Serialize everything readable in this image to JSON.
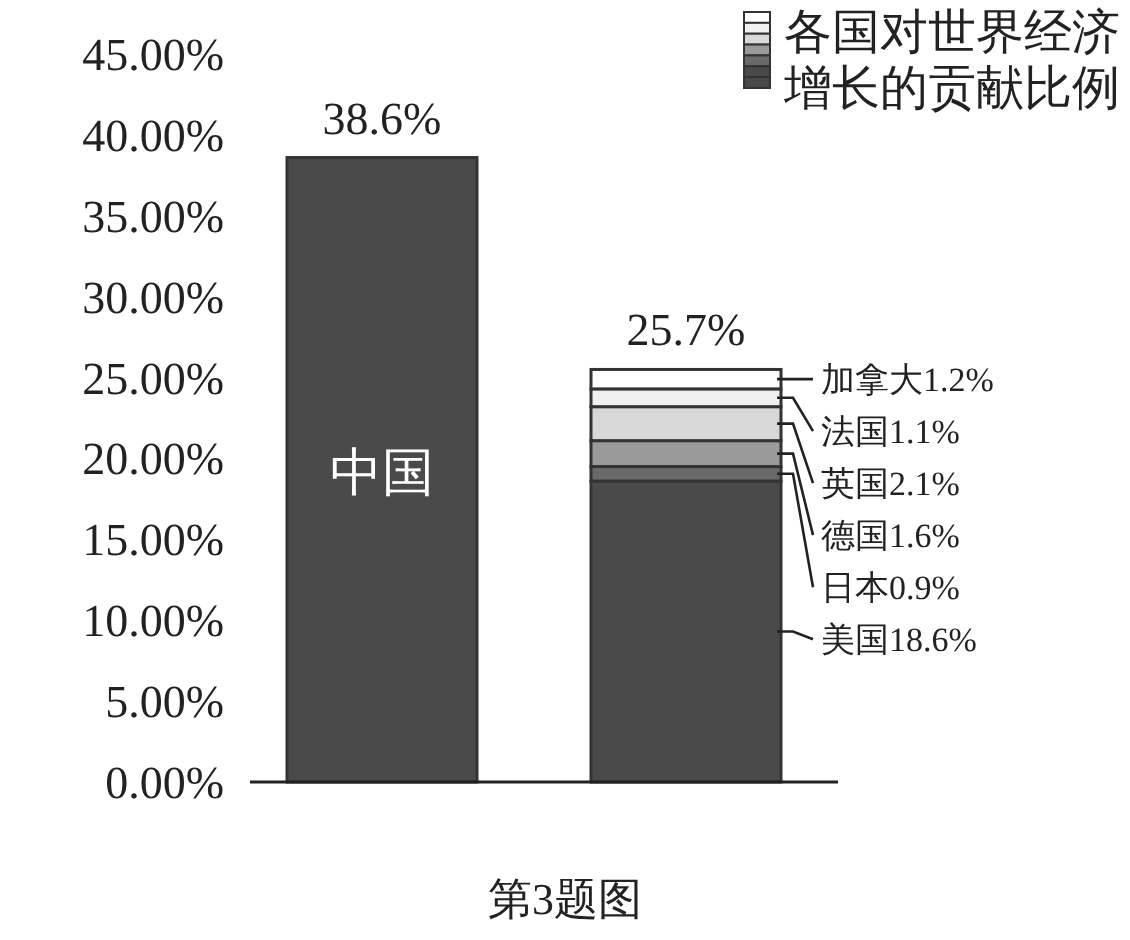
{
  "chart_data": {
    "type": "bar",
    "stacked": true,
    "title": "各国对世界经济增长的贡献比例",
    "categories": [
      null,
      null
    ],
    "series": [
      {
        "name": "中国",
        "color": "#4a4a4a",
        "values": [
          38.6,
          null
        ]
      },
      {
        "name": "美国",
        "color": "#4a4a4a",
        "values": [
          null,
          18.6
        ],
        "value_labels": [
          null,
          "18.6%"
        ]
      },
      {
        "name": "日本",
        "color": "#6a6a6a",
        "values": [
          null,
          0.9
        ],
        "value_labels": [
          null,
          "0.9%"
        ]
      },
      {
        "name": "德国",
        "color": "#9a9a9a",
        "values": [
          null,
          1.6
        ],
        "value_labels": [
          null,
          "1.6%"
        ]
      },
      {
        "name": "英国",
        "color": "#d8d8d8",
        "values": [
          null,
          2.1
        ],
        "value_labels": [
          null,
          "2.1%"
        ]
      },
      {
        "name": "法国",
        "color": "#f0f0f0",
        "values": [
          null,
          1.1
        ],
        "value_labels": [
          null,
          "1.1%"
        ]
      },
      {
        "name": "加拿大",
        "color": "#ffffff",
        "values": [
          null,
          1.2
        ],
        "value_labels": [
          null,
          "1.2%"
        ]
      }
    ],
    "totals": [
      "38.6%",
      "25.7%"
    ],
    "ylim": [
      0,
      45
    ],
    "yticks": [
      {
        "value": 0,
        "label": "0.00%"
      },
      {
        "value": 5,
        "label": "5.00%"
      },
      {
        "value": 10,
        "label": "10.00%"
      },
      {
        "value": 15,
        "label": "15.00%"
      },
      {
        "value": 20,
        "label": "20.00%"
      },
      {
        "value": 25,
        "label": "25.00%"
      },
      {
        "value": 30,
        "label": "30.00%"
      },
      {
        "value": 35,
        "label": "35.00%"
      },
      {
        "value": 40,
        "label": "40.00%"
      },
      {
        "value": 45,
        "label": "45.00%"
      }
    ],
    "annotations": [
      "第3题图"
    ]
  }
}
